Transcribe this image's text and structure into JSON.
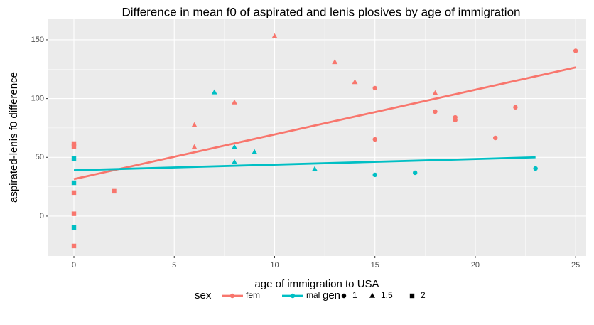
{
  "chart_data": {
    "type": "scatter",
    "title": "Difference in mean f0 of aspirated and lenis plosives by age of immigration",
    "x_label": "age of immigration to USA",
    "y_label": "aspirated-lenis f0 difference",
    "xlim": [
      -1.275,
      25.525
    ],
    "ylim": [
      -33.9,
      167.5
    ],
    "xticks": [
      0,
      5,
      10,
      15,
      20,
      25
    ],
    "yticks": [
      0,
      50,
      100,
      150
    ],
    "grid": true,
    "color_legend_title": "sex",
    "shape_legend": {
      "title": "gen",
      "levels": [
        "1",
        "1.5",
        "2"
      ],
      "shapes": [
        "circle",
        "triangle",
        "square"
      ]
    },
    "series": [
      {
        "name": "fem",
        "color": "#F8766D",
        "x": [
          0,
          0,
          0,
          0,
          0,
          2,
          6,
          6,
          8,
          10,
          13,
          14,
          18,
          15,
          15,
          18,
          19,
          19,
          21,
          22,
          25
        ],
        "values": [
          61.7,
          59.3,
          20,
          2,
          -25.4,
          21.2,
          77.4,
          58.7,
          96.8,
          153,
          131,
          114,
          104.6,
          108.9,
          65.3,
          88.9,
          84,
          81.7,
          66.5,
          92.6,
          140.6
        ],
        "gen": [
          "2",
          "2",
          "2",
          "2",
          "2",
          "2",
          "1.5",
          "1.5",
          "1.5",
          "1.5",
          "1.5",
          "1.5",
          "1.5",
          "1",
          "1",
          "1",
          "1",
          "1",
          "1",
          "1",
          "1"
        ],
        "fit": {
          "x": [
            0,
            25
          ],
          "values": [
            31.5,
            126.5
          ]
        }
      },
      {
        "name": "mal",
        "color": "#00BFC4",
        "x": [
          0,
          0,
          0,
          7,
          8,
          8,
          9,
          12,
          15,
          17,
          23
        ],
        "values": [
          49,
          28.4,
          -9.7,
          105.3,
          58.7,
          46,
          54.4,
          40,
          35.1,
          36.9,
          40.5
        ],
        "gen": [
          "2",
          "2",
          "2",
          "1.5",
          "1.5",
          "1.5",
          "1.5",
          "1.5",
          "1",
          "1",
          "1"
        ],
        "fit": {
          "x": [
            0,
            23
          ],
          "values": [
            39,
            50
          ]
        }
      }
    ]
  }
}
